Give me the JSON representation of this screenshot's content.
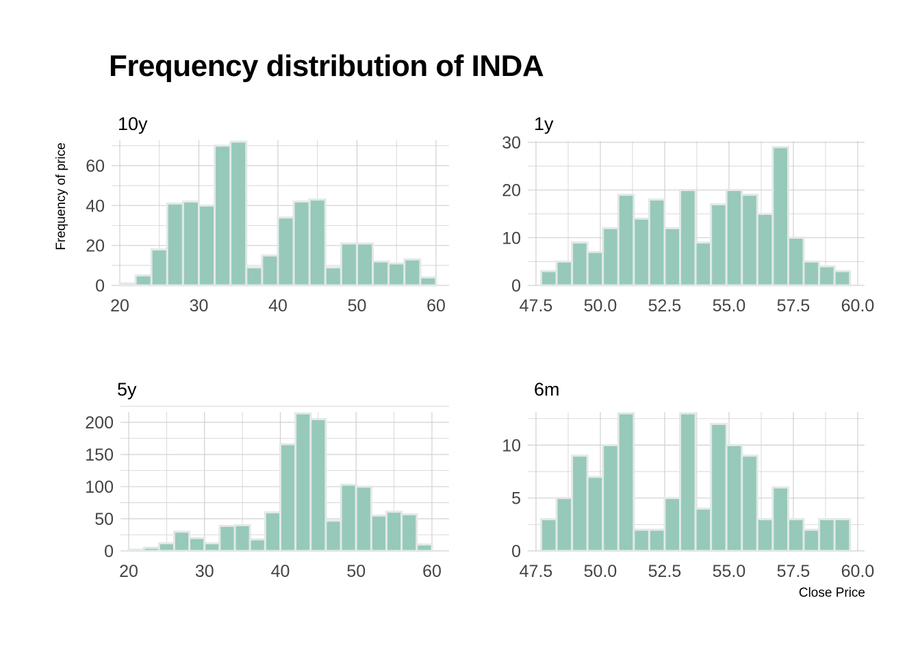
{
  "title": "Frequency distribution of INDA",
  "ylabel": "Frequency of price",
  "xlabel": "Close Price",
  "colors": {
    "bar_fill": "#96c9b9",
    "bar_stroke": "#e3e8e8",
    "grid": "#d0d0d0",
    "tick_text": "#444444"
  },
  "chart_data": [
    {
      "type": "bar",
      "panel": "10y",
      "bin_width": 2,
      "x": [
        21,
        23,
        25,
        27,
        29,
        31,
        33,
        35,
        37,
        39,
        41,
        43,
        45,
        47,
        49,
        51,
        53,
        55,
        57,
        59
      ],
      "values": [
        1,
        5,
        18,
        41,
        42,
        40,
        70,
        72,
        9,
        15,
        34,
        42,
        43,
        9,
        21,
        21,
        12,
        11,
        13,
        4
      ],
      "xlim": [
        20,
        60
      ],
      "ylim": [
        0,
        72
      ],
      "xticks": [
        20,
        30,
        40,
        50,
        60
      ],
      "yticks": [
        0,
        20,
        40,
        60
      ],
      "xtick_labels": [
        "20",
        "30",
        "40",
        "50",
        "60"
      ],
      "ytick_labels": [
        "0",
        "20",
        "40",
        "60"
      ]
    },
    {
      "type": "bar",
      "panel": "1y",
      "bin_width": 0.6,
      "x": [
        48.0,
        48.6,
        49.2,
        49.8,
        50.4,
        51.0,
        51.6,
        52.2,
        52.8,
        53.4,
        54.0,
        54.6,
        55.2,
        55.8,
        56.4,
        57.0,
        57.6,
        58.2,
        58.8,
        59.4
      ],
      "values": [
        3,
        5,
        9,
        7,
        12,
        19,
        14,
        18,
        12,
        20,
        9,
        17,
        20,
        19,
        15,
        29,
        10,
        5,
        4,
        3
      ],
      "xlim": [
        47.5,
        60
      ],
      "ylim": [
        0,
        30
      ],
      "xticks": [
        47.5,
        50,
        52.5,
        55,
        57.5,
        60
      ],
      "yticks": [
        0,
        10,
        20,
        30
      ],
      "xtick_labels": [
        "47.5",
        "50.0",
        "52.5",
        "55.0",
        "57.5",
        "60.0"
      ],
      "ytick_labels": [
        "0",
        "10",
        "20",
        "30"
      ]
    },
    {
      "type": "bar",
      "panel": "5y",
      "bin_width": 2,
      "x": [
        21,
        23,
        25,
        27,
        29,
        31,
        33,
        35,
        37,
        39,
        41,
        43,
        45,
        47,
        49,
        51,
        53,
        55,
        57,
        59
      ],
      "values": [
        2,
        5,
        12,
        30,
        20,
        12,
        39,
        40,
        18,
        60,
        166,
        214,
        205,
        47,
        103,
        100,
        55,
        61,
        57,
        10
      ],
      "xlim": [
        20,
        60
      ],
      "ylim": [
        0,
        214
      ],
      "xticks": [
        20,
        30,
        40,
        50,
        60
      ],
      "yticks": [
        0,
        50,
        100,
        150,
        200
      ],
      "xtick_labels": [
        "20",
        "30",
        "40",
        "50",
        "60"
      ],
      "ytick_labels": [
        "0",
        "50",
        "100",
        "150",
        "200"
      ]
    },
    {
      "type": "bar",
      "panel": "6m",
      "bin_width": 0.6,
      "x": [
        48.0,
        48.6,
        49.2,
        49.8,
        50.4,
        51.0,
        51.6,
        52.2,
        52.8,
        53.4,
        54.0,
        54.6,
        55.2,
        55.8,
        56.4,
        57.0,
        57.6,
        58.2,
        58.8,
        59.4
      ],
      "values": [
        3,
        5,
        9,
        7,
        10,
        13,
        2,
        2,
        5,
        13,
        4,
        12,
        10,
        9,
        3,
        6,
        3,
        2,
        3,
        3
      ],
      "xlim": [
        47.5,
        60
      ],
      "ylim": [
        0,
        13
      ],
      "xticks": [
        47.5,
        50,
        52.5,
        55,
        57.5,
        60
      ],
      "yticks": [
        0,
        5,
        10
      ],
      "xtick_labels": [
        "47.5",
        "50.0",
        "52.5",
        "55.0",
        "57.5",
        "60.0"
      ],
      "ytick_labels": [
        "0",
        "5",
        "10"
      ]
    }
  ]
}
